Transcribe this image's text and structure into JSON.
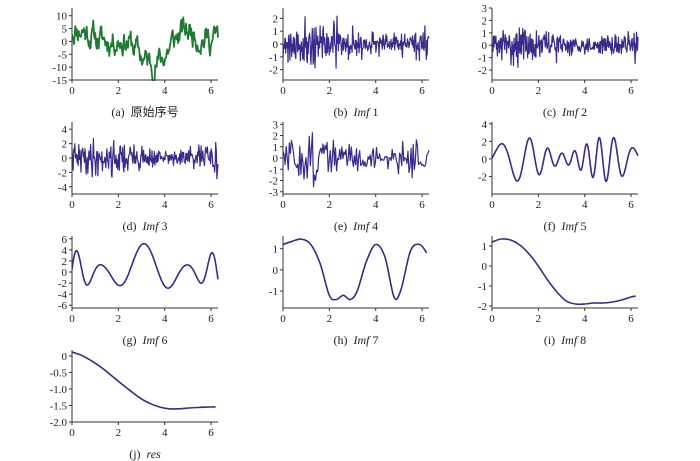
{
  "figure": {
    "colors": {
      "green": "#1f7a33",
      "purple": "#3a2a8c",
      "axis": "#333333"
    }
  },
  "chart_data": [
    {
      "type": "line",
      "caption": "(a)  原始序号",
      "caption_label": "(a)  ",
      "caption_italic": "",
      "caption_tail": "原始序号",
      "color": "#1f7a33",
      "xlim": [
        0,
        6.3
      ],
      "ylim": [
        -15,
        13
      ],
      "xticks": [
        0,
        2,
        4,
        6
      ],
      "yticks": [
        10,
        5,
        0,
        -5,
        -10,
        -15
      ],
      "ytick_labels": [
        "10",
        "5",
        "0",
        "-5",
        "-10",
        "-15"
      ],
      "signal": {
        "kind": "walk",
        "n": 220,
        "seed": 11,
        "mean": -1,
        "amp": 10,
        "noise": 4,
        "start": 5
      }
    },
    {
      "type": "line",
      "caption": "(b)  Imf 1",
      "caption_label": "(b)  ",
      "caption_italic": "Imf",
      "caption_tail": " 1",
      "color": "#3a2a8c",
      "xlim": [
        0,
        6.3
      ],
      "ylim": [
        -2.8,
        2.8
      ],
      "xticks": [
        0,
        2,
        4,
        6
      ],
      "yticks": [
        2,
        1,
        0,
        -1,
        -2
      ],
      "ytick_labels": [
        "2",
        "1",
        "0",
        "-1",
        "-2"
      ],
      "signal": {
        "kind": "noise",
        "n": 320,
        "seed": 21,
        "amp": 1.1
      }
    },
    {
      "type": "line",
      "caption": "(c)  Imf 2",
      "caption_label": "(c)  ",
      "caption_italic": "Imf",
      "caption_tail": " 2",
      "color": "#3a2a8c",
      "xlim": [
        0,
        6.3
      ],
      "ylim": [
        -2.8,
        3.0
      ],
      "xticks": [
        0,
        2,
        4,
        6
      ],
      "yticks": [
        3,
        2,
        1,
        0,
        -1,
        -2
      ],
      "ytick_labels": [
        "3",
        "2",
        "1",
        "0",
        "-1",
        "-2"
      ],
      "signal": {
        "kind": "noise",
        "n": 300,
        "seed": 31,
        "amp": 0.9
      }
    },
    {
      "type": "line",
      "caption": "(d)  Imf 3",
      "caption_label": "(d)  ",
      "caption_italic": "Imf",
      "caption_tail": " 3",
      "color": "#3a2a8c",
      "xlim": [
        0,
        6.3
      ],
      "ylim": [
        -5,
        5
      ],
      "xticks": [
        0,
        2,
        4,
        6
      ],
      "yticks": [
        4,
        2,
        0,
        -2,
        -4
      ],
      "ytick_labels": [
        "4",
        "2",
        "0",
        "-2",
        "-4"
      ],
      "signal": {
        "kind": "noise",
        "n": 260,
        "seed": 41,
        "amp": 1.6
      }
    },
    {
      "type": "line",
      "caption": "(e)  Imf 4",
      "caption_label": "(e)  ",
      "caption_italic": "Imf",
      "caption_tail": " 4",
      "color": "#3a2a8c",
      "xlim": [
        0,
        6.3
      ],
      "ylim": [
        -3.2,
        3.2
      ],
      "xticks": [
        0,
        2,
        4,
        6
      ],
      "yticks": [
        3,
        2,
        1,
        0,
        -1,
        -2,
        -3
      ],
      "ytick_labels": [
        "3",
        "2",
        "1",
        "0",
        "-1",
        "-2",
        "-3"
      ],
      "signal": {
        "kind": "noise",
        "n": 140,
        "seed": 51,
        "amp": 1.4
      }
    },
    {
      "type": "line",
      "caption": "(f)  Imf 5",
      "caption_label": "(f)  ",
      "caption_italic": "Imf",
      "caption_tail": " 5",
      "color": "#3a2a8c",
      "xlim": [
        0,
        6.3
      ],
      "ylim": [
        -4,
        4.2
      ],
      "xticks": [
        0,
        2,
        4,
        6
      ],
      "yticks": [
        4,
        2,
        0,
        -2
      ],
      "ytick_labels": [
        "4",
        "2",
        "0",
        "-2"
      ],
      "signal": {
        "kind": "wave",
        "n": 400,
        "seed": 61,
        "amp": 1.6,
        "freq": 3.2
      }
    },
    {
      "type": "line",
      "caption": "(g)  Imf 6",
      "caption_label": "(g)  ",
      "caption_italic": "Imf",
      "caption_tail": " 6",
      "color": "#3a2a8c",
      "xlim": [
        0,
        6.3
      ],
      "ylim": [
        -6.5,
        6.5
      ],
      "xticks": [
        0,
        2,
        4,
        6
      ],
      "yticks": [
        6,
        4,
        2,
        0,
        -2,
        -4,
        -6
      ],
      "ytick_labels": [
        "6",
        "4",
        "2",
        "0",
        "-2",
        "-4",
        "-6"
      ],
      "signal": {
        "kind": "wave",
        "n": 400,
        "seed": 71,
        "amp": 3.2,
        "freq": 1.9
      }
    },
    {
      "type": "line",
      "caption": "(h)  Imf 7",
      "caption_label": "(h)  ",
      "caption_italic": "Imf",
      "caption_tail": " 7",
      "color": "#3a2a8c",
      "xlim": [
        0,
        6.3
      ],
      "ylim": [
        -1.8,
        1.6
      ],
      "xticks": [
        0,
        2,
        4,
        6
      ],
      "yticks": [
        1,
        0,
        -1
      ],
      "ytick_labels": [
        "1",
        "0",
        "-1"
      ],
      "x": [
        0,
        0.4,
        0.8,
        1.2,
        1.6,
        2.0,
        2.3,
        2.6,
        2.9,
        3.2,
        3.6,
        4.0,
        4.4,
        4.8,
        5.1,
        5.5,
        5.9,
        6.2
      ],
      "y": [
        1.2,
        1.35,
        1.45,
        1.2,
        0.3,
        -1.2,
        -1.4,
        -1.2,
        -1.4,
        -1.0,
        0.4,
        1.2,
        0.6,
        -1.3,
        -0.9,
        0.9,
        1.2,
        0.8
      ]
    },
    {
      "type": "line",
      "caption": "(i)  Imf 8",
      "caption_label": "(i)  ",
      "caption_italic": "Imf",
      "caption_tail": " 8",
      "color": "#3a2a8c",
      "xlim": [
        0,
        6.3
      ],
      "ylim": [
        -2.1,
        1.5
      ],
      "xticks": [
        0,
        2,
        4,
        6
      ],
      "yticks": [
        1,
        0,
        -1,
        -2
      ],
      "ytick_labels": [
        "1",
        "0",
        "-1",
        "-2"
      ],
      "x": [
        0,
        0.4,
        0.8,
        1.2,
        1.6,
        2.0,
        2.4,
        2.8,
        3.2,
        3.6,
        4.0,
        4.4,
        4.8,
        5.2,
        5.6,
        6.0,
        6.2
      ],
      "y": [
        1.2,
        1.35,
        1.3,
        1.05,
        0.6,
        0.0,
        -0.7,
        -1.3,
        -1.75,
        -1.9,
        -1.9,
        -1.85,
        -1.85,
        -1.8,
        -1.7,
        -1.55,
        -1.5
      ]
    },
    {
      "type": "line",
      "caption": "(j)  res",
      "caption_label": "(j)  ",
      "caption_italic": "res",
      "caption_tail": "",
      "color": "#3a2a8c",
      "xlim": [
        0,
        6.3
      ],
      "ylim": [
        -2.0,
        0.18
      ],
      "xticks": [
        0,
        2,
        4,
        6
      ],
      "yticks": [
        0,
        -0.5,
        -1.0,
        -1.5,
        -2.0
      ],
      "ytick_labels": [
        "0",
        "-0.5",
        "-1.0",
        "-1.5",
        "-2.0"
      ],
      "x": [
        0,
        0.3,
        0.6,
        1.0,
        1.4,
        1.8,
        2.2,
        2.6,
        3.0,
        3.4,
        3.8,
        4.2,
        4.6,
        5.0,
        5.4,
        5.8,
        6.2
      ],
      "y": [
        0.12,
        0.05,
        -0.05,
        -0.22,
        -0.42,
        -0.65,
        -0.88,
        -1.1,
        -1.3,
        -1.45,
        -1.55,
        -1.6,
        -1.6,
        -1.58,
        -1.56,
        -1.55,
        -1.54
      ]
    }
  ]
}
